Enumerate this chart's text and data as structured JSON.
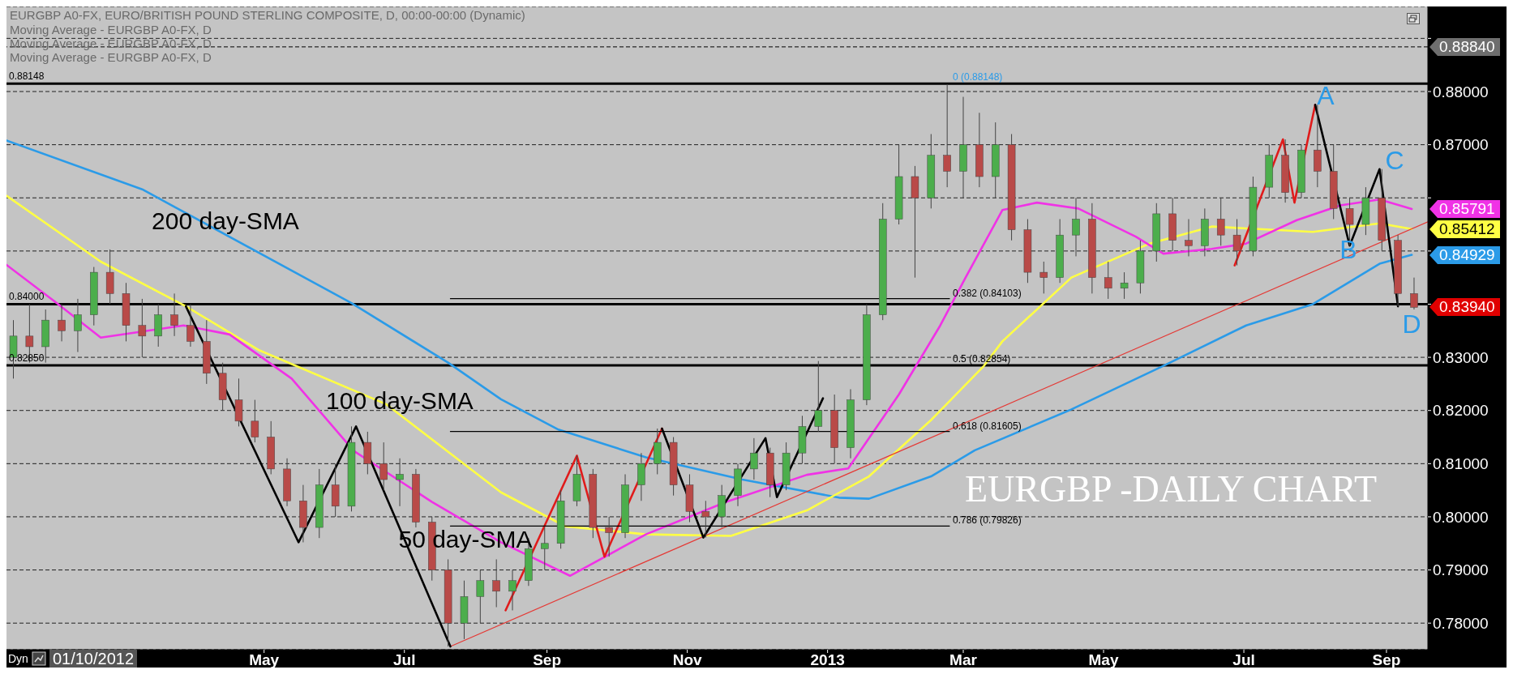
{
  "chart_data": {
    "type": "candlestick",
    "title": "EURGBP -DAILY CHART",
    "subtitle": "EURGBP A0-FX, EURO/BRITISH POUND STERLING COMPOSITE, D, 00:00-00:00 (Dynamic)",
    "x": [
      "2012-01-13",
      "2012-01-20",
      "2012-01-27",
      "2012-02-03",
      "2012-02-10",
      "2012-02-17",
      "2012-02-24",
      "2012-03-02",
      "2012-03-09",
      "2012-03-16",
      "2012-03-23",
      "2012-03-30",
      "2012-04-06",
      "2012-04-13",
      "2012-04-20",
      "2012-04-27",
      "2012-05-04",
      "2012-05-11",
      "2012-05-18",
      "2012-05-25",
      "2012-06-01",
      "2012-06-08",
      "2012-06-15",
      "2012-06-22",
      "2012-06-29",
      "2012-07-06",
      "2012-07-13",
      "2012-07-20",
      "2012-07-27",
      "2012-08-03",
      "2012-08-10",
      "2012-08-17",
      "2012-08-24",
      "2012-08-31",
      "2012-09-07",
      "2012-09-14",
      "2012-09-21",
      "2012-09-28",
      "2012-10-05",
      "2012-10-12",
      "2012-10-19",
      "2012-10-26",
      "2012-11-02",
      "2012-11-09",
      "2012-11-16",
      "2012-11-23",
      "2012-11-30",
      "2012-12-07",
      "2012-12-14",
      "2012-12-21",
      "2012-12-28",
      "2013-01-04",
      "2013-01-11",
      "2013-01-18",
      "2013-01-25",
      "2013-02-01",
      "2013-02-08",
      "2013-02-15",
      "2013-02-22",
      "2013-03-01",
      "2013-03-08",
      "2013-03-15",
      "2013-03-22",
      "2013-03-29",
      "2013-04-05",
      "2013-04-12",
      "2013-04-19",
      "2013-04-26",
      "2013-05-03",
      "2013-05-10",
      "2013-05-17",
      "2013-05-24",
      "2013-05-31",
      "2013-06-07",
      "2013-06-14",
      "2013-06-21",
      "2013-06-28",
      "2013-07-05",
      "2013-07-12",
      "2013-07-19",
      "2013-07-26",
      "2013-08-02",
      "2013-08-09",
      "2013-08-16",
      "2013-08-23",
      "2013-08-30",
      "2013-09-06",
      "2013-09-13"
    ],
    "ohlc": [
      [
        0.83,
        0.837,
        0.826,
        0.834
      ],
      [
        0.834,
        0.84,
        0.829,
        0.832
      ],
      [
        0.832,
        0.839,
        0.829,
        0.837
      ],
      [
        0.837,
        0.84,
        0.833,
        0.835
      ],
      [
        0.835,
        0.841,
        0.831,
        0.838
      ],
      [
        0.838,
        0.847,
        0.836,
        0.846
      ],
      [
        0.846,
        0.8503,
        0.84,
        0.842
      ],
      [
        0.842,
        0.844,
        0.833,
        0.836
      ],
      [
        0.836,
        0.841,
        0.83,
        0.834
      ],
      [
        0.834,
        0.84,
        0.832,
        0.838
      ],
      [
        0.838,
        0.842,
        0.834,
        0.836
      ],
      [
        0.836,
        0.84,
        0.832,
        0.833
      ],
      [
        0.833,
        0.837,
        0.825,
        0.827
      ],
      [
        0.827,
        0.829,
        0.82,
        0.822
      ],
      [
        0.822,
        0.826,
        0.817,
        0.818
      ],
      [
        0.818,
        0.822,
        0.814,
        0.815
      ],
      [
        0.815,
        0.818,
        0.808,
        0.809
      ],
      [
        0.809,
        0.811,
        0.802,
        0.803
      ],
      [
        0.803,
        0.806,
        0.7952,
        0.798
      ],
      [
        0.798,
        0.809,
        0.796,
        0.806
      ],
      [
        0.806,
        0.81,
        0.8,
        0.802
      ],
      [
        0.802,
        0.817,
        0.801,
        0.814
      ],
      [
        0.814,
        0.816,
        0.808,
        0.81
      ],
      [
        0.81,
        0.814,
        0.805,
        0.807
      ],
      [
        0.807,
        0.811,
        0.802,
        0.808
      ],
      [
        0.808,
        0.809,
        0.798,
        0.799
      ],
      [
        0.799,
        0.8,
        0.788,
        0.79
      ],
      [
        0.79,
        0.792,
        0.7756,
        0.78
      ],
      [
        0.78,
        0.788,
        0.777,
        0.785
      ],
      [
        0.785,
        0.79,
        0.78,
        0.788
      ],
      [
        0.788,
        0.792,
        0.783,
        0.786
      ],
      [
        0.786,
        0.79,
        0.7824,
        0.788
      ],
      [
        0.788,
        0.796,
        0.787,
        0.794
      ],
      [
        0.794,
        0.798,
        0.79,
        0.795
      ],
      [
        0.795,
        0.805,
        0.794,
        0.803
      ],
      [
        0.803,
        0.8115,
        0.802,
        0.808
      ],
      [
        0.808,
        0.809,
        0.796,
        0.798
      ],
      [
        0.798,
        0.8,
        0.7925,
        0.797
      ],
      [
        0.797,
        0.808,
        0.796,
        0.806
      ],
      [
        0.806,
        0.812,
        0.803,
        0.81
      ],
      [
        0.81,
        0.8166,
        0.808,
        0.814
      ],
      [
        0.814,
        0.815,
        0.804,
        0.806
      ],
      [
        0.806,
        0.808,
        0.799,
        0.801
      ],
      [
        0.801,
        0.803,
        0.7961,
        0.8
      ],
      [
        0.8,
        0.806,
        0.798,
        0.804
      ],
      [
        0.804,
        0.81,
        0.802,
        0.809
      ],
      [
        0.809,
        0.8148,
        0.807,
        0.812
      ],
      [
        0.812,
        0.813,
        0.8037,
        0.806
      ],
      [
        0.806,
        0.814,
        0.805,
        0.812
      ],
      [
        0.812,
        0.819,
        0.81,
        0.817
      ],
      [
        0.817,
        0.8293,
        0.816,
        0.82
      ],
      [
        0.82,
        0.823,
        0.81,
        0.813
      ],
      [
        0.813,
        0.824,
        0.811,
        0.822
      ],
      [
        0.822,
        0.84,
        0.821,
        0.838
      ],
      [
        0.838,
        0.859,
        0.837,
        0.856
      ],
      [
        0.856,
        0.87,
        0.855,
        0.864
      ],
      [
        0.864,
        0.866,
        0.845,
        0.86
      ],
      [
        0.86,
        0.872,
        0.858,
        0.868
      ],
      [
        0.868,
        0.8814,
        0.862,
        0.865
      ],
      [
        0.865,
        0.879,
        0.86,
        0.87
      ],
      [
        0.87,
        0.876,
        0.862,
        0.864
      ],
      [
        0.864,
        0.8742,
        0.86,
        0.87
      ],
      [
        0.87,
        0.872,
        0.852,
        0.854
      ],
      [
        0.854,
        0.856,
        0.844,
        0.846
      ],
      [
        0.846,
        0.848,
        0.842,
        0.845
      ],
      [
        0.845,
        0.856,
        0.844,
        0.853
      ],
      [
        0.853,
        0.86,
        0.849,
        0.856
      ],
      [
        0.856,
        0.859,
        0.842,
        0.845
      ],
      [
        0.845,
        0.848,
        0.841,
        0.843
      ],
      [
        0.843,
        0.846,
        0.841,
        0.844
      ],
      [
        0.844,
        0.852,
        0.842,
        0.85
      ],
      [
        0.85,
        0.859,
        0.848,
        0.857
      ],
      [
        0.857,
        0.86,
        0.85,
        0.852
      ],
      [
        0.852,
        0.856,
        0.849,
        0.851
      ],
      [
        0.851,
        0.858,
        0.849,
        0.856
      ],
      [
        0.856,
        0.86,
        0.851,
        0.853
      ],
      [
        0.853,
        0.856,
        0.8473,
        0.85
      ],
      [
        0.85,
        0.864,
        0.849,
        0.862
      ],
      [
        0.862,
        0.87,
        0.86,
        0.868
      ],
      [
        0.868,
        0.871,
        0.8591,
        0.861
      ],
      [
        0.861,
        0.87,
        0.86,
        0.869
      ],
      [
        0.869,
        0.8775,
        0.862,
        0.865
      ],
      [
        0.865,
        0.87,
        0.856,
        0.858
      ],
      [
        0.858,
        0.86,
        0.851,
        0.855
      ],
      [
        0.855,
        0.862,
        0.853,
        0.86
      ],
      [
        0.86,
        0.8654,
        0.85,
        0.852
      ],
      [
        0.852,
        0.853,
        0.8396,
        0.842
      ],
      [
        0.842,
        0.845,
        0.839,
        0.8394
      ]
    ],
    "colors": [
      "#4cae4c",
      "#b94a48",
      "#4cae4c",
      "#b94a48",
      "#4cae4c",
      "#4cae4c",
      "#b94a48",
      "#b94a48",
      "#b94a48",
      "#4cae4c",
      "#b94a48",
      "#b94a48",
      "#b94a48",
      "#b94a48",
      "#b94a48",
      "#b94a48",
      "#b94a48",
      "#b94a48",
      "#b94a48",
      "#4cae4c",
      "#b94a48",
      "#4cae4c",
      "#b94a48",
      "#b94a48",
      "#4cae4c",
      "#b94a48",
      "#b94a48",
      "#b94a48",
      "#4cae4c",
      "#4cae4c",
      "#b94a48",
      "#4cae4c",
      "#4cae4c",
      "#4cae4c",
      "#4cae4c",
      "#4cae4c",
      "#b94a48",
      "#b94a48",
      "#4cae4c",
      "#4cae4c",
      "#4cae4c",
      "#b94a48",
      "#b94a48",
      "#b94a48",
      "#4cae4c",
      "#4cae4c",
      "#4cae4c",
      "#b94a48",
      "#4cae4c",
      "#4cae4c",
      "#4cae4c",
      "#b94a48",
      "#4cae4c",
      "#4cae4c",
      "#4cae4c",
      "#4cae4c",
      "#b94a48",
      "#4cae4c",
      "#b94a48",
      "#4cae4c",
      "#b94a48",
      "#4cae4c",
      "#b94a48",
      "#b94a48",
      "#b94a48",
      "#4cae4c",
      "#4cae4c",
      "#b94a48",
      "#b94a48",
      "#4cae4c",
      "#4cae4c",
      "#4cae4c",
      "#b94a48",
      "#b94a48",
      "#4cae4c",
      "#b94a48",
      "#b94a48",
      "#4cae4c",
      "#4cae4c",
      "#b94a48",
      "#4cae4c",
      "#b94a48",
      "#b94a48",
      "#b94a48",
      "#4cae4c",
      "#b94a48",
      "#b94a48",
      "#b94a48"
    ],
    "value_labels": [
      null,
      null,
      null,
      null,
      null,
      null,
      null,
      null,
      null,
      null,
      null,
      null,
      null,
      null,
      null,
      null,
      null,
      null,
      null,
      null,
      null,
      null,
      null,
      null,
      null,
      null,
      null,
      null,
      null,
      null,
      null,
      null,
      null,
      null,
      null,
      null,
      null,
      null,
      null,
      null,
      null,
      null,
      null,
      null,
      null,
      null,
      null,
      null,
      null,
      null,
      null,
      null,
      null,
      null,
      null,
      null,
      null,
      null,
      null,
      null,
      null,
      null,
      null,
      null,
      null,
      null,
      null,
      null,
      null,
      null,
      null,
      null,
      null,
      null,
      null,
      null,
      null,
      null,
      null,
      null,
      null,
      null,
      null,
      null,
      null,
      null,
      null,
      "0.83940"
    ],
    "series": [
      {
        "type": "line",
        "color": "#2b9be8",
        "x": [
          "2012-01-10",
          "2012-03-09",
          "2012-06-08",
          "2012-07-20",
          "2012-08-12",
          "2012-09-06",
          "2012-10-14",
          "2012-11-25",
          "2013-01-06",
          "2013-01-19",
          "2013-02-15",
          "2013-03-06",
          "2013-04-17",
          "2013-05-27",
          "2013-07-02",
          "2013-07-31",
          "2013-08-29",
          "2013-09-12"
        ],
        "values": [
          0.8708,
          0.8616,
          0.8402,
          0.829,
          0.8221,
          0.8164,
          0.8112,
          0.807,
          0.8036,
          0.8034,
          0.8076,
          0.8125,
          0.8202,
          0.8284,
          0.836,
          0.84,
          0.8476,
          0.84929
        ],
        "value_labels": [
          null,
          null,
          null,
          null,
          null,
          null,
          null,
          null,
          null,
          null,
          null,
          null,
          null,
          null,
          null,
          null,
          null,
          "0.84929"
        ]
      },
      {
        "type": "line",
        "color": "#ffff44",
        "x": [
          "2012-01-10",
          "2012-02-20",
          "2012-03-28",
          "2012-04-29",
          "2012-06-23",
          "2012-08-12",
          "2012-09-09",
          "2012-10-14",
          "2012-11-20",
          "2012-12-23",
          "2013-01-19",
          "2013-02-15",
          "2013-03-10",
          "2013-03-18",
          "2013-04-17",
          "2013-05-21",
          "2013-06-17",
          "2013-07-31",
          "2013-08-29",
          "2013-09-12"
        ],
        "values": [
          0.8604,
          0.848,
          0.8396,
          0.8313,
          0.8212,
          0.8046,
          0.7982,
          0.7967,
          0.7964,
          0.8012,
          0.8076,
          0.8182,
          0.8284,
          0.833,
          0.845,
          0.8514,
          0.8546,
          0.8536,
          0.8552,
          0.85412
        ],
        "value_labels": [
          null,
          null,
          null,
          null,
          null,
          null,
          null,
          null,
          null,
          null,
          null,
          null,
          null,
          null,
          null,
          null,
          null,
          null,
          null,
          "0.85412"
        ]
      },
      {
        "type": "line",
        "color": "#f032e6",
        "x": [
          "2012-01-10",
          "2012-01-31",
          "2012-02-20",
          "2012-03-27",
          "2012-04-16",
          "2012-05-13",
          "2012-06-09",
          "2012-07-13",
          "2012-08-12",
          "2012-09-11",
          "2012-10-14",
          "2012-11-18",
          "2012-12-23",
          "2013-01-10",
          "2013-02-01",
          "2013-02-19",
          "2013-03-02",
          "2013-03-18",
          "2013-04-02",
          "2013-04-20",
          "2013-05-15",
          "2013-05-27",
          "2013-06-17",
          "2013-07-02",
          "2013-07-24",
          "2013-08-12",
          "2013-08-29",
          "2013-09-12"
        ],
        "values": [
          0.8474,
          0.8405,
          0.8337,
          0.836,
          0.8343,
          0.826,
          0.8124,
          0.8028,
          0.7952,
          0.7889,
          0.7967,
          0.8028,
          0.8079,
          0.8091,
          0.823,
          0.836,
          0.845,
          0.8577,
          0.8591,
          0.858,
          0.8527,
          0.8495,
          0.8504,
          0.8514,
          0.8558,
          0.8586,
          0.8597,
          0.85791
        ],
        "value_labels": [
          null,
          null,
          null,
          null,
          null,
          null,
          null,
          null,
          null,
          null,
          null,
          null,
          null,
          null,
          null,
          null,
          null,
          null,
          null,
          null,
          null,
          null,
          null,
          null,
          null,
          null,
          null,
          "0.85791"
        ]
      },
      {
        "type": "line",
        "color": "#e53935",
        "x": [
          "2012-07-21",
          "2013-09-19"
        ],
        "values": [
          0.7756,
          0.8555
        ]
      },
      {
        "type": "line",
        "color": "#000000",
        "x": [
          "2012-03-28",
          "2012-05-16",
          "2012-06-10",
          "2012-07-21"
        ],
        "values": [
          0.8396,
          0.7952,
          0.817,
          0.7756
        ]
      },
      {
        "type": "line",
        "color": "#e01b1b",
        "x": [
          "2012-08-14",
          "2012-09-14",
          "2012-09-26",
          "2012-10-21"
        ],
        "values": [
          0.7824,
          0.8115,
          0.7925,
          0.8166
        ]
      },
      {
        "type": "line",
        "color": "#000000",
        "x": [
          "2012-10-21",
          "2012-11-08",
          "2012-12-05",
          "2012-12-10",
          "2012-12-30"
        ],
        "values": [
          0.8166,
          0.7961,
          0.8148,
          0.8037,
          0.8223
        ]
      },
      {
        "type": "line",
        "color": "#e01b1b",
        "x": [
          "2013-06-27",
          "2013-07-18",
          "2013-07-23",
          "2013-08-01"
        ],
        "values": [
          0.8473,
          0.871,
          0.8591,
          0.8775
        ]
      },
      {
        "type": "line",
        "color": "#000000",
        "x": [
          "2013-08-01",
          "2013-08-16",
          "2013-08-29",
          "2013-09-06"
        ],
        "values": [
          0.8775,
          0.851,
          0.8654,
          0.8396
        ]
      },
      {
        "type": "line",
        "name": "0.382 (0.84103)",
        "color": "#000000",
        "x": [
          "2012-07-21",
          "2013-02-23"
        ],
        "values": [
          0.84103,
          0.84103
        ]
      },
      {
        "type": "line",
        "name": "0.618 (0.81605)",
        "color": "#000000",
        "x": [
          "2012-07-21",
          "2013-02-23"
        ],
        "values": [
          0.81605,
          0.81605
        ]
      },
      {
        "type": "line",
        "name": "0.786 (0.79826)",
        "color": "#000000",
        "x": [
          "2012-07-21",
          "2013-02-23"
        ],
        "values": [
          0.79826,
          0.79826
        ]
      }
    ],
    "xlim": [
      "2012-01-10",
      "2013-09-19"
    ],
    "xticks": [
      {
        "value": "2012-05-01",
        "label": "May"
      },
      {
        "value": "2012-07-01",
        "label": "Jul"
      },
      {
        "value": "2012-09-01",
        "label": "Sep"
      },
      {
        "value": "2012-11-01",
        "label": "Nov"
      },
      {
        "value": "2013-01-01",
        "label": "2013"
      },
      {
        "value": "2013-03-01",
        "label": "Mar"
      },
      {
        "value": "2013-05-01",
        "label": "May"
      },
      {
        "value": "2013-07-01",
        "label": "Jul"
      },
      {
        "value": "2013-09-01",
        "label": "Sep"
      }
    ],
    "ylim": [
      0.775,
      0.896
    ],
    "yticks": [
      {
        "value": 0.78,
        "label": "0.78000"
      },
      {
        "value": 0.79,
        "label": "0.79000"
      },
      {
        "value": 0.8,
        "label": "0.80000"
      },
      {
        "value": 0.81,
        "label": "0.81000"
      },
      {
        "value": 0.82,
        "label": "0.82000"
      },
      {
        "value": 0.83,
        "label": "0.83000"
      },
      {
        "value": 0.84,
        "label": null
      },
      {
        "value": 0.85,
        "label": null
      },
      {
        "value": 0.86,
        "label": null
      },
      {
        "value": 0.87,
        "label": "0.87000"
      },
      {
        "value": 0.88,
        "label": "0.88000"
      },
      {
        "value": 0.89,
        "label": null
      }
    ],
    "grid": "y",
    "ref_lines": [
      {
        "axis": "y",
        "value": 0.88148,
        "label": "0.88148"
      },
      {
        "axis": "y",
        "value": 0.84,
        "label": "0.84000"
      },
      {
        "axis": "y",
        "value": 0.8285,
        "label": "0.82850"
      },
      {
        "axis": "y",
        "value": 0.8884,
        "line_style": "dashed"
      }
    ],
    "annotations": [
      {
        "text": "0 (0.88148)",
        "x": "2013-02-23",
        "y": 0.88148
      },
      {
        "text": "0.5 (0.82854)",
        "x": "2013-02-23",
        "y": 0.82854
      },
      "200 day-SMA",
      "100 day-SMA",
      "50 day-SMA",
      "A",
      "B",
      "C",
      "D",
      "0.88840",
      "Moving Average - EURGBP A0-FX, D",
      "Moving Average - EURGBP A0-FX, D",
      "Moving Average - EURGBP A0-FX, D",
      "Dyn",
      "01/10/2012"
    ]
  }
}
